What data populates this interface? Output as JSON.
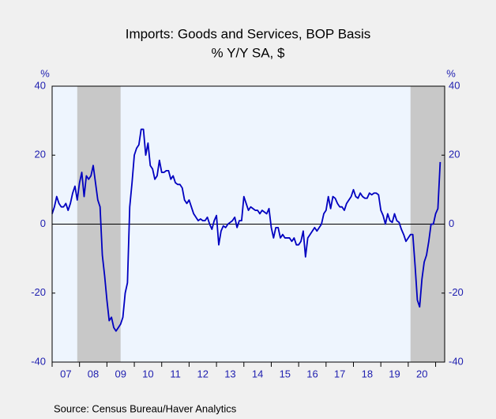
{
  "chart_data": {
    "type": "line",
    "title": "Imports: Goods and Services, BOP Basis",
    "subtitle": "% Y/Y   SA, $",
    "y_unit_left": "%",
    "y_unit_right": "%",
    "source": "Source:  Census Bureau/Haver Analytics",
    "xlim": [
      2007,
      2021.33
    ],
    "ylim": [
      -40,
      40
    ],
    "yticks": [
      -40,
      -20,
      0,
      20,
      40
    ],
    "xticks": [
      {
        "value": 2007,
        "label": "07"
      },
      {
        "value": 2008,
        "label": "08"
      },
      {
        "value": 2009,
        "label": "09"
      },
      {
        "value": 2010,
        "label": "10"
      },
      {
        "value": 2011,
        "label": "11"
      },
      {
        "value": 2012,
        "label": "12"
      },
      {
        "value": 2013,
        "label": "13"
      },
      {
        "value": 2014,
        "label": "14"
      },
      {
        "value": 2015,
        "label": "15"
      },
      {
        "value": 2016,
        "label": "16"
      },
      {
        "value": 2017,
        "label": "17"
      },
      {
        "value": 2018,
        "label": "18"
      },
      {
        "value": 2019,
        "label": "19"
      },
      {
        "value": 2020,
        "label": "20"
      },
      2021
    ],
    "shaded_periods": [
      [
        2007.917,
        2009.5
      ],
      [
        2020.083,
        2021.33
      ]
    ],
    "shade_color": "#c8c8c8",
    "zero_line": true,
    "x": [
      2007,
      2007.083,
      2007.167,
      2007.25,
      2007.333,
      2007.417,
      2007.5,
      2007.583,
      2007.667,
      2007.75,
      2007.833,
      2007.917,
      2008,
      2008.083,
      2008.167,
      2008.25,
      2008.333,
      2008.417,
      2008.5,
      2008.583,
      2008.667,
      2008.75,
      2008.833,
      2008.917,
      2009,
      2009.083,
      2009.167,
      2009.25,
      2009.333,
      2009.417,
      2009.5,
      2009.583,
      2009.667,
      2009.75,
      2009.833,
      2009.917,
      2010,
      2010.083,
      2010.167,
      2010.25,
      2010.333,
      2010.417,
      2010.5,
      2010.583,
      2010.667,
      2010.75,
      2010.833,
      2010.917,
      2011,
      2011.083,
      2011.167,
      2011.25,
      2011.333,
      2011.417,
      2011.5,
      2011.583,
      2011.667,
      2011.75,
      2011.833,
      2011.917,
      2012,
      2012.083,
      2012.167,
      2012.25,
      2012.333,
      2012.417,
      2012.5,
      2012.583,
      2012.667,
      2012.75,
      2012.833,
      2012.917,
      2013,
      2013.083,
      2013.167,
      2013.25,
      2013.333,
      2013.417,
      2013.5,
      2013.583,
      2013.667,
      2013.75,
      2013.833,
      2013.917,
      2014,
      2014.083,
      2014.167,
      2014.25,
      2014.333,
      2014.417,
      2014.5,
      2014.583,
      2014.667,
      2014.75,
      2014.833,
      2014.917,
      2015,
      2015.083,
      2015.167,
      2015.25,
      2015.333,
      2015.417,
      2015.5,
      2015.583,
      2015.667,
      2015.75,
      2015.833,
      2015.917,
      2016,
      2016.083,
      2016.167,
      2016.25,
      2016.333,
      2016.417,
      2016.5,
      2016.583,
      2016.667,
      2016.75,
      2016.833,
      2016.917,
      2017,
      2017.083,
      2017.167,
      2017.25,
      2017.333,
      2017.417,
      2017.5,
      2017.583,
      2017.667,
      2017.75,
      2017.833,
      2017.917,
      2018,
      2018.083,
      2018.167,
      2018.25,
      2018.333,
      2018.417,
      2018.5,
      2018.583,
      2018.667,
      2018.75,
      2018.833,
      2018.917,
      2019,
      2019.083,
      2019.167,
      2019.25,
      2019.333,
      2019.417,
      2019.5,
      2019.583,
      2019.667,
      2019.75,
      2019.833,
      2019.917,
      2020,
      2020.083,
      2020.167,
      2020.25,
      2020.333,
      2020.417,
      2020.5,
      2020.583,
      2020.667,
      2020.75,
      2020.833,
      2020.917,
      2021,
      2021.083,
      2021.167
    ],
    "series": [
      {
        "color": "#0000c0",
        "values": [
          3,
          5,
          8,
          6,
          5,
          5,
          6,
          4,
          6,
          9,
          11,
          7,
          12,
          15,
          8,
          14,
          13,
          14,
          17,
          12,
          7,
          5,
          -9,
          -15,
          -22,
          -28,
          -27,
          -30,
          -31,
          -30,
          -29,
          -27,
          -20,
          -17,
          5,
          12,
          20,
          22,
          23,
          27.5,
          27.5,
          20,
          23.5,
          17,
          16,
          13,
          14,
          18.5,
          15,
          15,
          15.5,
          15.5,
          13,
          14,
          12,
          11.5,
          11.5,
          10.5,
          7,
          6,
          7,
          5,
          3,
          2,
          1,
          1.5,
          1,
          1,
          2,
          0,
          -1.5,
          1,
          2.5,
          -6,
          -2,
          -0.5,
          -1,
          0,
          0.5,
          1,
          2,
          -1,
          1,
          1,
          8,
          6,
          4,
          5,
          4.5,
          4,
          4,
          3,
          4,
          3.5,
          3,
          4.5,
          -1,
          -4,
          -1,
          -1,
          -4,
          -3,
          -4,
          -4,
          -4,
          -5,
          -4,
          -6,
          -6,
          -5,
          -2,
          -9.5,
          -4,
          -3,
          -2,
          -1,
          -2,
          -1,
          0,
          3,
          4,
          8,
          4.5,
          8,
          7.5,
          6,
          5,
          5,
          4,
          6,
          7,
          8,
          10,
          8,
          7.5,
          9,
          8,
          7.5,
          7.5,
          9,
          8.5,
          9,
          9,
          8.5,
          4,
          2.5,
          0,
          3,
          1,
          0.5,
          3,
          1,
          0.5,
          -1.5,
          -3,
          -5,
          -4,
          -3,
          -3,
          -12,
          -22,
          -24,
          -16,
          -11,
          -9,
          -5,
          0,
          0,
          3,
          4.5,
          18
        ]
      }
    ]
  }
}
